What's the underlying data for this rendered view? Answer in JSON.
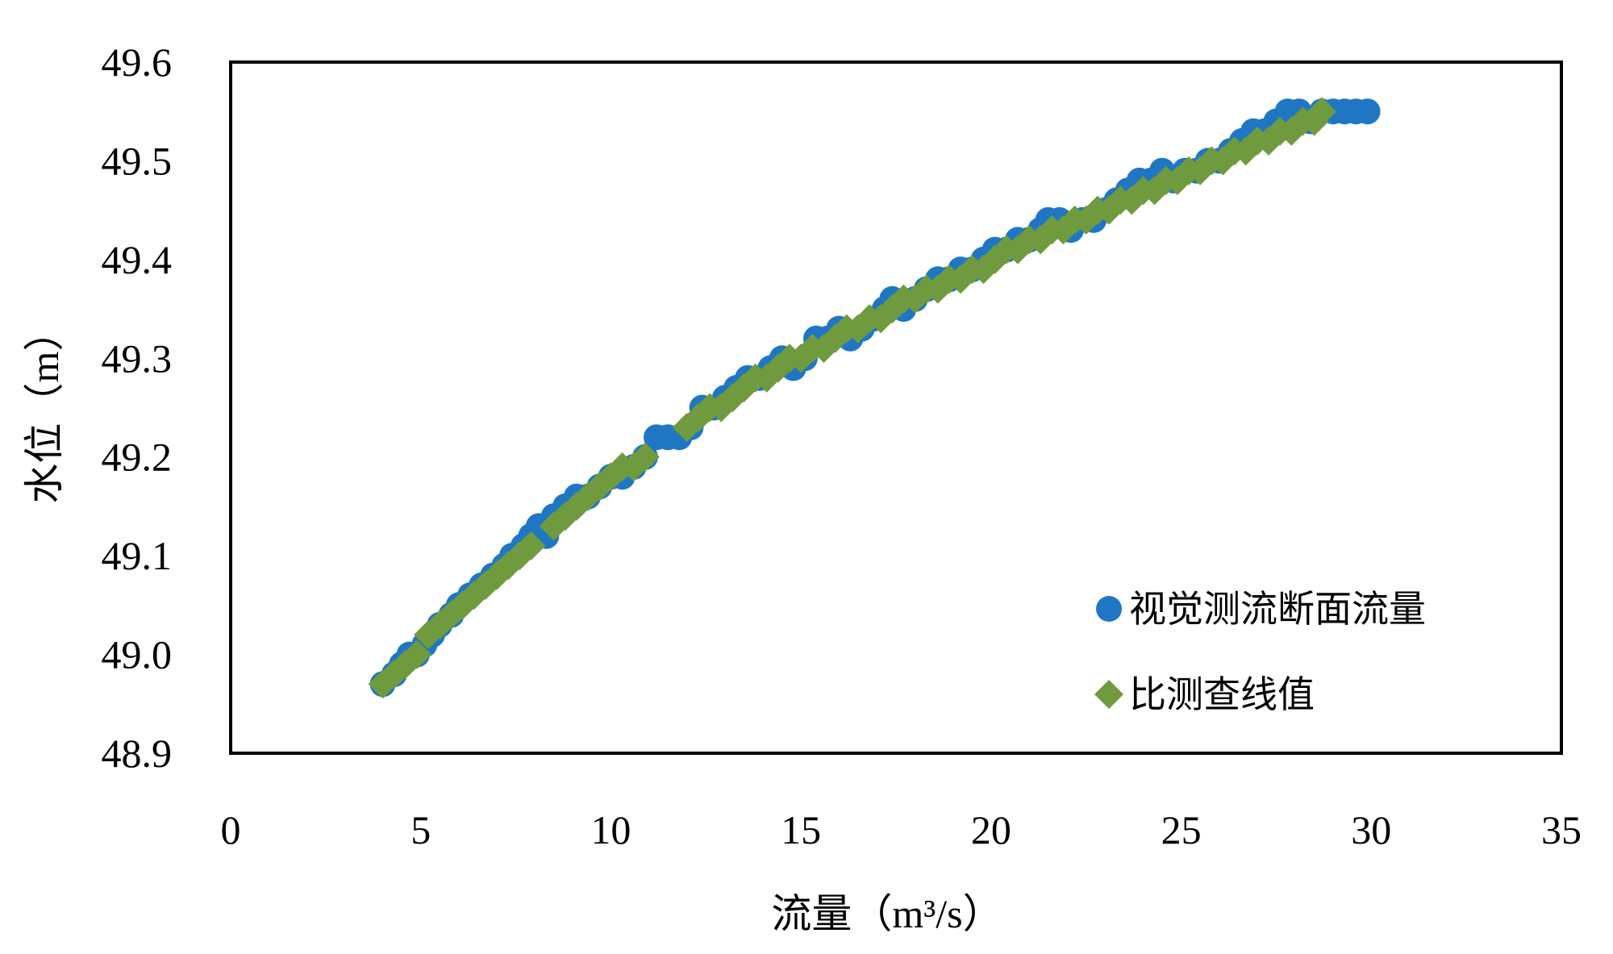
{
  "chart_data": {
    "type": "scatter",
    "title": "",
    "xlabel": "流量（m³/s）",
    "ylabel": "水位（m）",
    "xlim": [
      0,
      35
    ],
    "ylim": [
      48.9,
      49.6
    ],
    "xticks": [
      0,
      5,
      10,
      15,
      20,
      25,
      30,
      35
    ],
    "yticks": [
      "48.9",
      "49.0",
      "49.1",
      "49.2",
      "49.3",
      "49.4",
      "49.5",
      "49.6"
    ],
    "grid": false,
    "legend_position": "bottom-right",
    "colors": {
      "series1": "#1f77c4",
      "series2": "#6f9b3e"
    },
    "series": [
      {
        "name": "视觉测流断面流量",
        "marker": "circle",
        "points": [
          [
            4.0,
            48.97
          ],
          [
            4.3,
            48.98
          ],
          [
            4.5,
            48.99
          ],
          [
            4.7,
            49.0
          ],
          [
            4.9,
            49.0
          ],
          [
            5.1,
            49.01
          ],
          [
            5.3,
            49.02
          ],
          [
            5.5,
            49.03
          ],
          [
            5.8,
            49.04
          ],
          [
            6.0,
            49.05
          ],
          [
            6.3,
            49.06
          ],
          [
            6.6,
            49.07
          ],
          [
            6.9,
            49.08
          ],
          [
            7.2,
            49.09
          ],
          [
            7.4,
            49.1
          ],
          [
            7.7,
            49.11
          ],
          [
            7.9,
            49.12
          ],
          [
            8.1,
            49.13
          ],
          [
            8.3,
            49.12
          ],
          [
            8.5,
            49.14
          ],
          [
            8.8,
            49.15
          ],
          [
            9.1,
            49.16
          ],
          [
            9.4,
            49.16
          ],
          [
            9.7,
            49.17
          ],
          [
            10.0,
            49.18
          ],
          [
            10.3,
            49.18
          ],
          [
            10.6,
            49.19
          ],
          [
            10.9,
            49.2
          ],
          [
            11.2,
            49.22
          ],
          [
            11.5,
            49.22
          ],
          [
            11.8,
            49.22
          ],
          [
            12.1,
            49.23
          ],
          [
            12.4,
            49.25
          ],
          [
            12.7,
            49.25
          ],
          [
            13.0,
            49.26
          ],
          [
            13.3,
            49.27
          ],
          [
            13.6,
            49.28
          ],
          [
            13.9,
            49.28
          ],
          [
            14.2,
            49.29
          ],
          [
            14.5,
            49.3
          ],
          [
            14.8,
            49.29
          ],
          [
            15.1,
            49.3
          ],
          [
            15.4,
            49.32
          ],
          [
            15.7,
            49.32
          ],
          [
            16.0,
            49.33
          ],
          [
            16.3,
            49.32
          ],
          [
            16.6,
            49.33
          ],
          [
            16.9,
            49.34
          ],
          [
            17.2,
            49.35
          ],
          [
            17.4,
            49.36
          ],
          [
            17.7,
            49.35
          ],
          [
            18.0,
            49.36
          ],
          [
            18.3,
            49.37
          ],
          [
            18.6,
            49.38
          ],
          [
            18.9,
            49.38
          ],
          [
            19.2,
            49.39
          ],
          [
            19.5,
            49.39
          ],
          [
            19.8,
            49.4
          ],
          [
            20.1,
            49.41
          ],
          [
            20.4,
            49.41
          ],
          [
            20.7,
            49.42
          ],
          [
            21.0,
            49.42
          ],
          [
            21.3,
            49.43
          ],
          [
            21.5,
            49.44
          ],
          [
            21.8,
            49.44
          ],
          [
            22.1,
            49.43
          ],
          [
            22.4,
            49.44
          ],
          [
            22.7,
            49.44
          ],
          [
            23.0,
            49.45
          ],
          [
            23.3,
            49.46
          ],
          [
            23.6,
            49.47
          ],
          [
            23.9,
            49.48
          ],
          [
            24.2,
            49.48
          ],
          [
            24.5,
            49.49
          ],
          [
            24.8,
            49.48
          ],
          [
            25.1,
            49.49
          ],
          [
            25.4,
            49.49
          ],
          [
            25.7,
            49.5
          ],
          [
            26.0,
            49.5
          ],
          [
            26.3,
            49.51
          ],
          [
            26.6,
            49.52
          ],
          [
            26.9,
            49.53
          ],
          [
            27.2,
            49.53
          ],
          [
            27.5,
            49.54
          ],
          [
            27.8,
            49.55
          ],
          [
            28.1,
            49.55
          ],
          [
            28.4,
            49.54
          ],
          [
            28.7,
            49.55
          ],
          [
            29.0,
            49.55
          ],
          [
            29.3,
            49.55
          ],
          [
            29.6,
            49.55
          ],
          [
            29.9,
            49.55
          ]
        ]
      },
      {
        "name": "比测查线值",
        "marker": "diamond",
        "points": [
          [
            4.0,
            48.97
          ],
          [
            4.3,
            48.98
          ],
          [
            4.6,
            48.99
          ],
          [
            4.9,
            49.0
          ],
          [
            5.2,
            49.02
          ],
          [
            5.5,
            49.03
          ],
          [
            5.8,
            49.04
          ],
          [
            6.1,
            49.05
          ],
          [
            6.4,
            49.06
          ],
          [
            6.7,
            49.07
          ],
          [
            7.0,
            49.08
          ],
          [
            7.3,
            49.09
          ],
          [
            7.6,
            49.1
          ],
          [
            7.9,
            49.11
          ],
          [
            8.5,
            49.13
          ],
          [
            8.8,
            49.14
          ],
          [
            9.1,
            49.15
          ],
          [
            9.4,
            49.16
          ],
          [
            9.7,
            49.17
          ],
          [
            10.0,
            49.18
          ],
          [
            10.3,
            49.19
          ],
          [
            10.6,
            49.19
          ],
          [
            10.9,
            49.2
          ],
          [
            12.0,
            49.23
          ],
          [
            12.3,
            49.24
          ],
          [
            12.6,
            49.25
          ],
          [
            12.9,
            49.25
          ],
          [
            13.2,
            49.26
          ],
          [
            13.5,
            49.27
          ],
          [
            13.8,
            49.28
          ],
          [
            14.1,
            49.28
          ],
          [
            14.4,
            49.29
          ],
          [
            14.7,
            49.3
          ],
          [
            15.0,
            49.3
          ],
          [
            15.3,
            49.31
          ],
          [
            15.6,
            49.31
          ],
          [
            15.9,
            49.32
          ],
          [
            16.2,
            49.33
          ],
          [
            16.5,
            49.33
          ],
          [
            16.8,
            49.34
          ],
          [
            17.1,
            49.34
          ],
          [
            17.4,
            49.35
          ],
          [
            17.7,
            49.36
          ],
          [
            18.0,
            49.36
          ],
          [
            18.3,
            49.37
          ],
          [
            18.6,
            49.37
          ],
          [
            18.9,
            49.38
          ],
          [
            19.2,
            49.38
          ],
          [
            19.5,
            49.39
          ],
          [
            19.8,
            49.39
          ],
          [
            20.1,
            49.4
          ],
          [
            20.4,
            49.41
          ],
          [
            20.7,
            49.41
          ],
          [
            21.0,
            49.42
          ],
          [
            21.3,
            49.42
          ],
          [
            21.6,
            49.43
          ],
          [
            21.9,
            49.43
          ],
          [
            22.2,
            49.44
          ],
          [
            22.5,
            49.44
          ],
          [
            22.8,
            49.45
          ],
          [
            23.1,
            49.45
          ],
          [
            23.4,
            49.46
          ],
          [
            23.7,
            49.46
          ],
          [
            24.0,
            49.47
          ],
          [
            24.3,
            49.47
          ],
          [
            24.6,
            49.48
          ],
          [
            24.9,
            49.48
          ],
          [
            25.2,
            49.49
          ],
          [
            25.5,
            49.49
          ],
          [
            25.8,
            49.5
          ],
          [
            26.1,
            49.5
          ],
          [
            26.4,
            49.51
          ],
          [
            26.7,
            49.51
          ],
          [
            27.0,
            49.52
          ],
          [
            27.3,
            49.52
          ],
          [
            27.6,
            49.53
          ],
          [
            27.9,
            49.53
          ],
          [
            28.2,
            49.54
          ],
          [
            28.5,
            49.54
          ],
          [
            28.7,
            49.55
          ]
        ]
      }
    ]
  }
}
